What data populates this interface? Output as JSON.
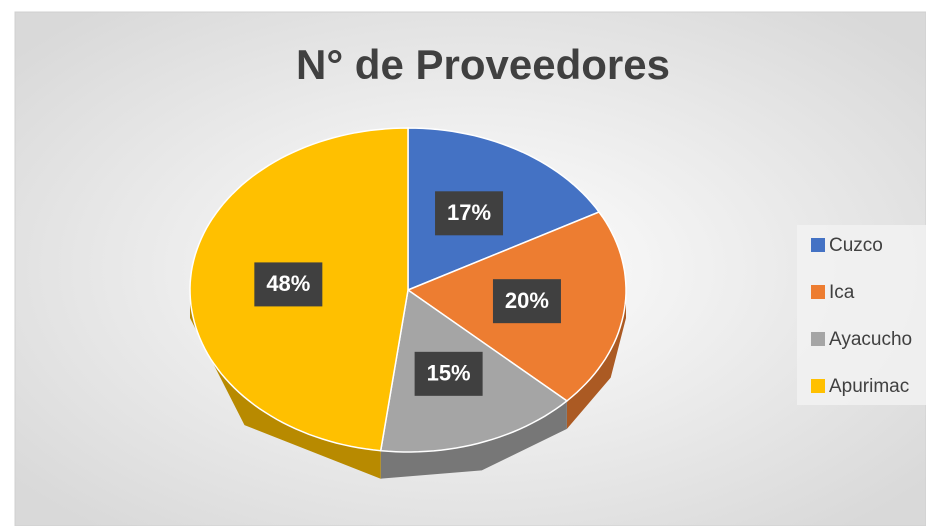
{
  "chart_data": {
    "type": "pie",
    "title": "N° de Proveedores",
    "categories": [
      "Cuzco",
      "Ica",
      "Ayacucho",
      "Apurimac"
    ],
    "values": [
      17,
      20,
      15,
      48
    ],
    "value_labels": [
      "17%",
      "20%",
      "15%",
      "48%"
    ],
    "colors": [
      "#4472c4",
      "#ed7d31",
      "#a5a5a5",
      "#ffc000"
    ],
    "legend": "right"
  }
}
